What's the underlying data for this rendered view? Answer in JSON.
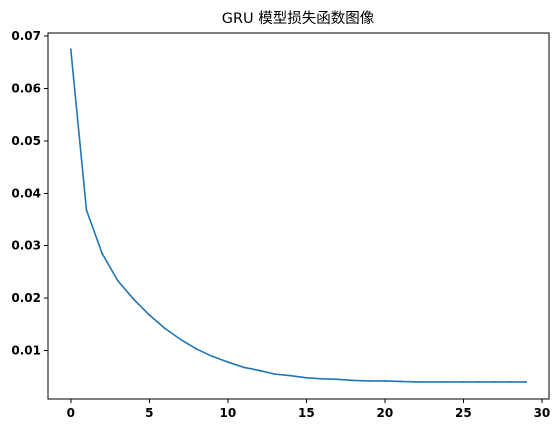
{
  "chart_data": {
    "type": "line",
    "title": "GRU 模型损失函数图像",
    "xlabel": "",
    "ylabel": "",
    "xlim": [
      -1.45,
      30.45
    ],
    "ylim": [
      0.00075,
      0.0706
    ],
    "x_ticks": [
      0,
      5,
      10,
      15,
      20,
      25,
      30
    ],
    "x_tick_labels": [
      "0",
      "5",
      "10",
      "15",
      "20",
      "25",
      "30"
    ],
    "y_ticks": [
      0.01,
      0.02,
      0.03,
      0.04,
      0.05,
      0.06,
      0.07
    ],
    "y_tick_labels": [
      "0.01",
      "0.02",
      "0.03",
      "0.04",
      "0.05",
      "0.06",
      "0.07"
    ],
    "grid": false,
    "legend": "none",
    "series": [
      {
        "color": "#1f77b4",
        "x": [
          0,
          1,
          2,
          3,
          4,
          5,
          6,
          7,
          8,
          9,
          10,
          11,
          12,
          13,
          14,
          15,
          16,
          17,
          18,
          19,
          20,
          21,
          22,
          23,
          24,
          25,
          26,
          27,
          28,
          29
        ],
        "values": [
          0.0675,
          0.0368,
          0.0285,
          0.0233,
          0.0198,
          0.0168,
          0.0142,
          0.0121,
          0.0103,
          0.0089,
          0.0078,
          0.0068,
          0.0062,
          0.0055,
          0.0052,
          0.0048,
          0.0046,
          0.0045,
          0.0043,
          0.0042,
          0.0042,
          0.0041,
          0.004,
          0.004,
          0.004,
          0.004,
          0.004,
          0.004,
          0.004,
          0.004
        ]
      }
    ]
  }
}
